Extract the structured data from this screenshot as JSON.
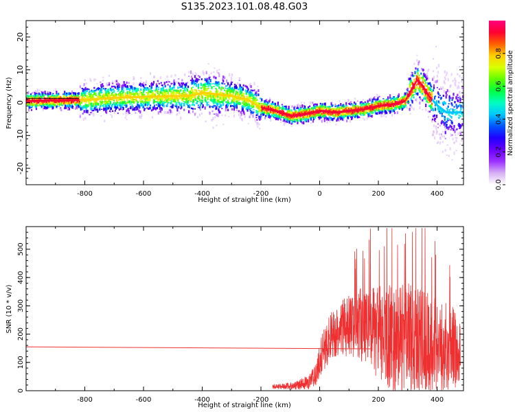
{
  "title": "S135.2023.101.08.48.G03",
  "chart_data": [
    {
      "type": "heatmap",
      "xlabel": "Height of straight line (km)",
      "ylabel": "Frequency (Hz)",
      "xlim": [
        -1000,
        490
      ],
      "ylim": [
        -25,
        25
      ],
      "xticks": [
        -800,
        -600,
        -400,
        -200,
        0,
        200,
        400
      ],
      "yticks": [
        -20,
        -10,
        0,
        10,
        20
      ],
      "colorbar": {
        "label": "Normalized spectral amplitude",
        "range": [
          0,
          1
        ],
        "ticks": [
          0.0,
          0.2,
          0.4,
          0.6,
          0.8
        ],
        "colors": [
          "#ffffff",
          "#d7b0f5",
          "#9b30ff",
          "#6a00ff",
          "#1f00ff",
          "#0055ff",
          "#00c8ff",
          "#00ffc0",
          "#00ff40",
          "#60ff00",
          "#d8ff00",
          "#ffd000",
          "#ff6000",
          "#ff0030",
          "#ff0080"
        ]
      },
      "ridge_center": {
        "x": [
          -1000,
          -900,
          -820,
          -780,
          -700,
          -600,
          -500,
          -450,
          -400,
          -350,
          -300,
          -250,
          -200,
          -150,
          -100,
          -50,
          0,
          50,
          100,
          150,
          200,
          250,
          290,
          310,
          330,
          350,
          370,
          400,
          430
        ],
        "y": [
          0.5,
          0.7,
          0.8,
          1.0,
          1.5,
          1.8,
          2.0,
          2.0,
          3.0,
          2.5,
          2.0,
          1.0,
          -1.5,
          -2.5,
          -4.0,
          -3.5,
          -2.5,
          -3.0,
          -2.5,
          -2.0,
          -1.0,
          -0.5,
          0.5,
          4.0,
          7.0,
          5.0,
          2.0,
          -1.0,
          -3.0
        ]
      }
    },
    {
      "type": "line",
      "xlabel": "Height of straight line (km)",
      "ylabel": "SNR (10 * v/v)",
      "xlim": [
        -1000,
        490
      ],
      "ylim": [
        0,
        580
      ],
      "xticks": [
        -800,
        -600,
        -400,
        -200,
        0,
        200,
        400
      ],
      "yticks": [
        0,
        100,
        200,
        300,
        400,
        500
      ],
      "series_color": "#f03030",
      "baseline_segment": {
        "x": [
          -1000,
          180
        ],
        "y": [
          155,
          148
        ]
      },
      "envelope": {
        "x": [
          -160,
          -120,
          -80,
          -40,
          -10,
          0,
          20,
          50,
          100,
          150,
          200,
          250,
          300,
          350,
          400,
          450,
          480
        ],
        "mean": [
          15,
          15,
          18,
          30,
          60,
          110,
          160,
          210,
          230,
          230,
          200,
          190,
          180,
          170,
          160,
          150,
          140
        ],
        "amplitude": [
          8,
          10,
          15,
          25,
          40,
          60,
          80,
          90,
          110,
          140,
          170,
          190,
          200,
          190,
          170,
          150,
          120
        ]
      }
    }
  ]
}
